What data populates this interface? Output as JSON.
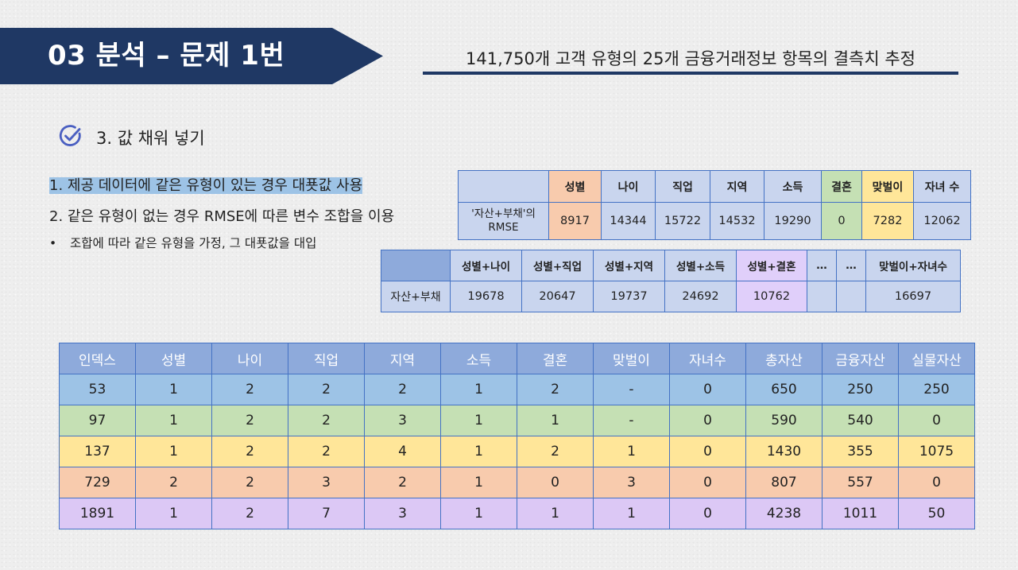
{
  "header": {
    "title": "03  분석 – 문제 1번",
    "subtitle": "141,750개 고객 유형의 25개 금융거래정보 항목의 결측치 추정"
  },
  "section": {
    "icon": "check-circle-icon",
    "title": "3. 값 채워 넣기"
  },
  "points": [
    "1. 제공 데이터에 같은 유형이 있는 경우 대푯값 사용",
    "2. 같은 유형이 없는 경우 RMSE에 따른 변수 조합을 이용"
  ],
  "bullet": {
    "symbol": "•",
    "text": "조합에 따라 같은 유형을 가정, 그 대푯값을 대입"
  },
  "rmse_single": {
    "headers": [
      "",
      "성별",
      "나이",
      "직업",
      "지역",
      "소득",
      "결혼",
      "맞벌이",
      "자녀 수"
    ],
    "row_label_line1": "'자산+부채'의",
    "row_label_line2": "RMSE",
    "values": [
      "8917",
      "14344",
      "15722",
      "14532",
      "19290",
      "0",
      "7282",
      "12062"
    ]
  },
  "rmse_combo": {
    "headers": [
      "",
      "성별+나이",
      "성별+직업",
      "성별+지역",
      "성별+소득",
      "성별+결혼",
      "…",
      "…",
      "맞벌이+자녀수"
    ],
    "row_label": "자산+부채",
    "values": [
      "19678",
      "20647",
      "19737",
      "24692",
      "10762",
      "",
      "",
      "16697"
    ]
  },
  "main_table": {
    "headers": [
      "인덱스",
      "성별",
      "나이",
      "직업",
      "지역",
      "소득",
      "결혼",
      "맞벌이",
      "자녀수",
      "총자산",
      "금융자산",
      "실물자산"
    ],
    "rows": [
      [
        "53",
        "1",
        "2",
        "2",
        "2",
        "1",
        "2",
        "-",
        "0",
        "650",
        "250",
        "250"
      ],
      [
        "97",
        "1",
        "2",
        "2",
        "3",
        "1",
        "1",
        "-",
        "0",
        "590",
        "540",
        "0"
      ],
      [
        "137",
        "1",
        "2",
        "2",
        "4",
        "1",
        "2",
        "1",
        "0",
        "1430",
        "355",
        "1075"
      ],
      [
        "729",
        "2",
        "2",
        "3",
        "2",
        "1",
        "0",
        "3",
        "0",
        "807",
        "557",
        "0"
      ],
      [
        "1891",
        "1",
        "2",
        "7",
        "3",
        "1",
        "1",
        "1",
        "0",
        "4238",
        "1011",
        "50"
      ]
    ],
    "row_colors": [
      "#9dc3e6",
      "#c5e0b4",
      "#ffe699",
      "#f8cbad",
      "#dcc8f5"
    ]
  },
  "colors": {
    "navy": "#1f3864",
    "table_border": "#4472c4",
    "header_blue": "#8eaadb",
    "highlight": "#9dc3e6"
  }
}
